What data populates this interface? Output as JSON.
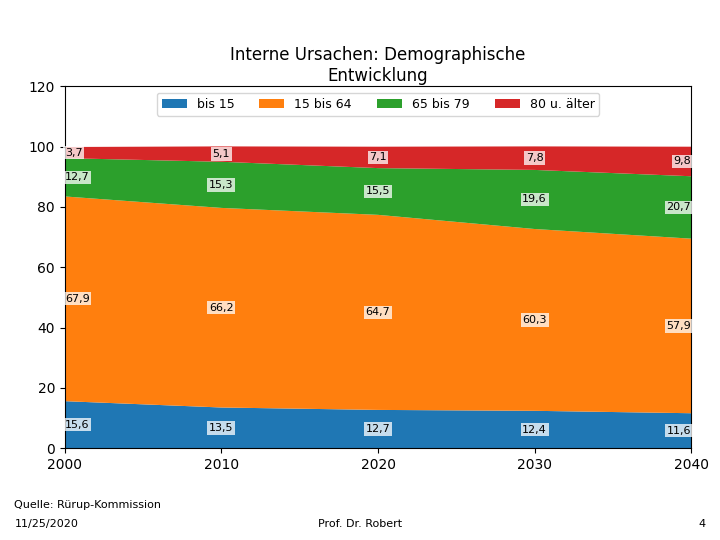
{
  "chart_data": {
    "type": "area",
    "stacked": true,
    "title": "Interne Ursachen: Demographische\nEntwicklung",
    "x": [
      2000,
      2010,
      2020,
      2030,
      2040
    ],
    "series": [
      {
        "name": "bis 15",
        "values": [
          15.6,
          13.5,
          12.7,
          12.4,
          11.6
        ],
        "value_labels": [
          "15,6",
          "13,5",
          "12,7",
          "12,4",
          "11,6"
        ]
      },
      {
        "name": "15 bis 64",
        "values": [
          67.9,
          66.2,
          64.7,
          60.3,
          57.9
        ],
        "value_labels": [
          "67,9",
          "66,2",
          "64,7",
          "60,3",
          "57,9"
        ]
      },
      {
        "name": "65 bis 79",
        "values": [
          12.7,
          15.3,
          15.5,
          19.6,
          20.7
        ],
        "value_labels": [
          "12,7",
          "15,3",
          "15,5",
          "19,6",
          "20,7"
        ]
      },
      {
        "name": "80 u. älter",
        "values": [
          3.7,
          5.1,
          7.1,
          7.8,
          9.8
        ],
        "value_labels": [
          "3,7",
          "5,1",
          "7,1",
          "7,8",
          "9,8"
        ]
      }
    ],
    "xlim": [
      2000,
      2040
    ],
    "xticks": [
      2000,
      2010,
      2020,
      2030,
      2040
    ],
    "ylim": [
      0,
      120
    ],
    "yticks": [
      0,
      20,
      40,
      60,
      80,
      100,
      120
    ],
    "data_labels": true,
    "legend": "upper center",
    "grid": false,
    "annotations": [
      "Quelle: Rürup-Kommission",
      "11/25/2020",
      "Prof. Dr. Robert",
      "4"
    ]
  }
}
